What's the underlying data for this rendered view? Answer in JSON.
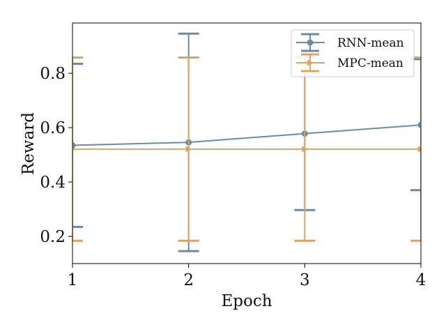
{
  "chart_data": {
    "type": "line",
    "xlabel": "Epoch",
    "ylabel": "Reward",
    "x": [
      1,
      2,
      3,
      4
    ],
    "xlim": [
      1,
      4
    ],
    "ylim": [
      0.1,
      0.985
    ],
    "xticks": [
      "1",
      "2",
      "3",
      "4"
    ],
    "yticks": [
      0.2,
      0.4,
      0.6,
      0.8
    ],
    "ytick_labels": [
      "0.2",
      "0.4",
      "0.6",
      "0.8"
    ],
    "grid": false,
    "legend_position": "top-right",
    "series": [
      {
        "name": "RNN-mean",
        "color": "#6b8aa3",
        "marker": "circle",
        "values": [
          0.535,
          0.546,
          0.578,
          0.61
        ],
        "err_low": [
          0.235,
          0.146,
          0.297,
          0.37
        ],
        "err_high": [
          0.835,
          0.946,
          0.859,
          0.852
        ]
      },
      {
        "name": "MPC-mean",
        "color": "#dba461",
        "marker": "triangle-right",
        "values": [
          0.521,
          0.521,
          0.521,
          0.521
        ],
        "err_low": [
          0.184,
          0.184,
          0.184,
          0.184
        ],
        "err_high": [
          0.858,
          0.858,
          0.858,
          0.858
        ]
      }
    ]
  }
}
